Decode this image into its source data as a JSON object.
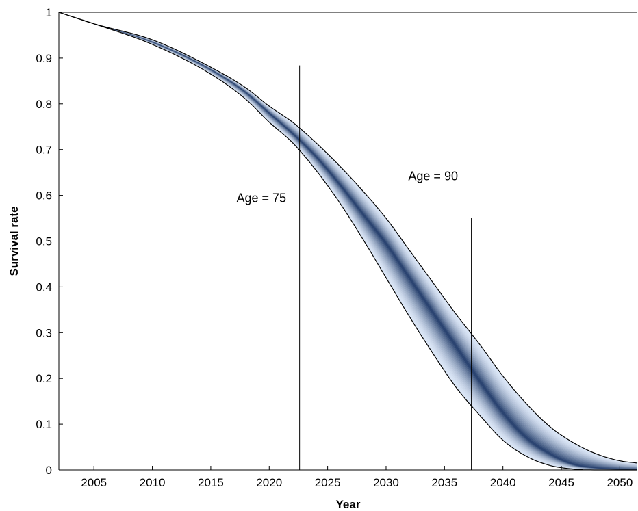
{
  "chart_data": {
    "type": "area",
    "title": "",
    "xlabel": "Year",
    "ylabel": "Survival rate",
    "xlim": [
      2002,
      2051.5
    ],
    "ylim": [
      0,
      1
    ],
    "xticks": [
      2005,
      2010,
      2015,
      2020,
      2025,
      2030,
      2035,
      2040,
      2045,
      2050
    ],
    "yticks": [
      0,
      0.1,
      0.2,
      0.3,
      0.4,
      0.5,
      0.6,
      0.7,
      0.8,
      0.9,
      1
    ],
    "ytick_labels": [
      "0",
      "0.1",
      "0.2",
      "0.3",
      "0.4",
      "0.5",
      "0.6",
      "0.7",
      "0.8",
      "0.9",
      "1"
    ],
    "grid": false,
    "colors": {
      "band_outer": "#dbe6f6",
      "band_inner": "#1a3564",
      "bound": "#000000"
    },
    "x": [
      2002,
      2005,
      2010,
      2015,
      2018,
      2020,
      2022,
      2024,
      2026,
      2028,
      2030,
      2032,
      2034,
      2036,
      2038,
      2040,
      2042,
      2044,
      2046,
      2048,
      2050,
      2051.5
    ],
    "series": [
      {
        "role": "upper-bound",
        "values": [
          1.0,
          0.975,
          0.94,
          0.88,
          0.835,
          0.795,
          0.76,
          0.715,
          0.665,
          0.61,
          0.55,
          0.48,
          0.41,
          0.34,
          0.275,
          0.205,
          0.145,
          0.095,
          0.06,
          0.035,
          0.02,
          0.015
        ]
      },
      {
        "role": "median",
        "values": [
          1.0,
          0.975,
          0.935,
          0.875,
          0.825,
          0.78,
          0.735,
          0.685,
          0.625,
          0.56,
          0.495,
          0.42,
          0.345,
          0.27,
          0.195,
          0.125,
          0.07,
          0.035,
          0.012,
          0.004,
          0.001,
          0.0
        ]
      },
      {
        "role": "lower-bound",
        "values": [
          1.0,
          0.975,
          0.93,
          0.865,
          0.81,
          0.76,
          0.715,
          0.655,
          0.585,
          0.505,
          0.42,
          0.335,
          0.255,
          0.18,
          0.12,
          0.065,
          0.03,
          0.01,
          0.002,
          0.0,
          0.0,
          0.0
        ]
      }
    ],
    "annotations": [
      {
        "text": "Age = 75",
        "line_x": 2022.6,
        "line_top": 0.884,
        "label_x": 2017.2,
        "label_y": 0.585
      },
      {
        "text": "Age = 90",
        "line_x": 2037.3,
        "line_top": 0.551,
        "label_x": 2031.9,
        "label_y": 0.633
      }
    ]
  }
}
